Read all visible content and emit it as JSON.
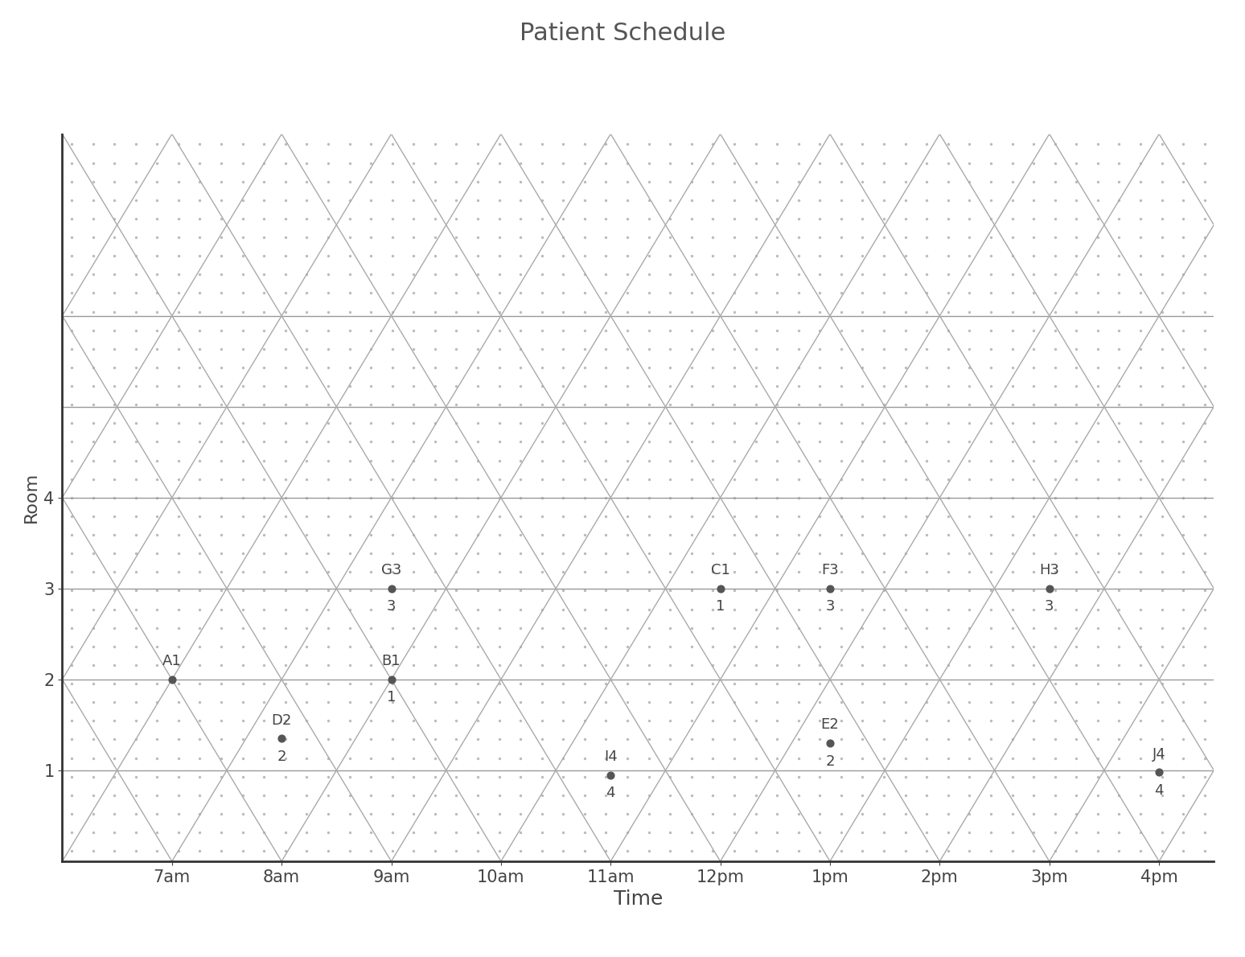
{
  "chart_data": {
    "type": "scatter",
    "title": "Patient Schedule",
    "x_label": "Time",
    "y_label": "Room",
    "x": [
      7,
      9,
      12,
      8,
      13,
      13,
      9,
      15,
      11,
      16
    ],
    "y": [
      2,
      2,
      3,
      1.35,
      1.3,
      3,
      3,
      3,
      0.95,
      0.98
    ],
    "point_labels": [
      "A1",
      "B1",
      "C1",
      "D2",
      "E2",
      "F3",
      "G3",
      "H3",
      "I4",
      "J4"
    ],
    "value_labels": [
      null,
      "1",
      "1",
      "2",
      "2",
      "3",
      "3",
      "3",
      "4",
      "4"
    ],
    "xlim": [
      6,
      16.5
    ],
    "xticks": [
      {
        "value": 7,
        "label": "7am"
      },
      {
        "value": 8,
        "label": "8am"
      },
      {
        "value": 9,
        "label": "9am"
      },
      {
        "value": 10,
        "label": "10am"
      },
      {
        "value": 11,
        "label": "11am"
      },
      {
        "value": 12,
        "label": "12pm"
      },
      {
        "value": 13,
        "label": "1pm"
      },
      {
        "value": 14,
        "label": "2pm"
      },
      {
        "value": 15,
        "label": "3pm"
      },
      {
        "value": 16,
        "label": "4pm"
      }
    ],
    "ylim": [
      0,
      8
    ],
    "yticks": [
      1,
      2,
      3,
      4
    ],
    "grid": true,
    "color": "#555555",
    "marker": "o"
  }
}
